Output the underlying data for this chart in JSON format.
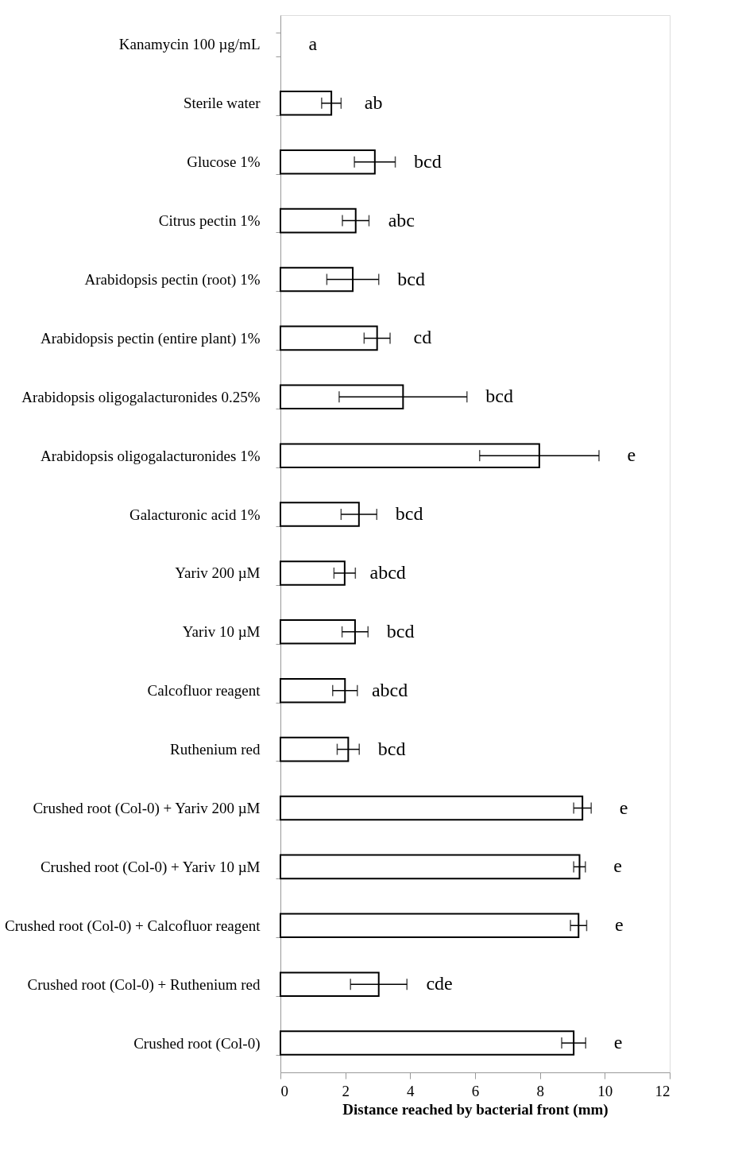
{
  "chart_data": {
    "type": "bar",
    "orientation": "horizontal",
    "xlabel": "Distance reached by bacterial front (mm)",
    "categories": [
      "Kanamycin 100 µg/mL",
      "Sterile water",
      "Glucose 1%",
      "Citrus pectin 1%",
      "Arabidopsis pectin (root) 1%",
      "Arabidopsis pectin (entire plant) 1%",
      "Arabidopsis oligogalacturonides 0.25%",
      "Arabidopsis oligogalacturonides 1%",
      "Galacturonic acid 1%",
      "Yariv 200 µM",
      "Yariv 10 µM",
      "Calcofluor reagent",
      "Ruthenium red",
      "Crushed root (Col-0) + Yariv 200 µM",
      "Crushed root (Col-0) + Yariv 10 µM",
      "Crushed root (Col-0) + Calcofluor reagent",
      "Crushed root (Col-0) + Ruthenium red",
      "Crushed root (Col-0)"
    ],
    "values": [
      0,
      1.57,
      2.91,
      2.32,
      2.23,
      2.98,
      3.78,
      7.98,
      2.42,
      1.98,
      2.3,
      1.99,
      2.09,
      9.31,
      9.22,
      9.19,
      3.03,
      9.04
    ],
    "errors": [
      null,
      0.3,
      0.63,
      0.41,
      0.8,
      0.4,
      1.97,
      1.84,
      0.55,
      0.33,
      0.4,
      0.38,
      0.34,
      0.27,
      0.18,
      0.25,
      0.87,
      0.37
    ],
    "color": "#ffffff",
    "xlim": [
      0,
      12
    ],
    "xticks": [
      0,
      2,
      4,
      6,
      8,
      10,
      12
    ],
    "grid": false,
    "annotations": [
      "a",
      "ab",
      "bcd",
      "abc",
      "bcd",
      "cd",
      "bcd",
      "e",
      "bcd",
      "abcd",
      "bcd",
      "abcd",
      "bcd",
      "e",
      "e",
      "e",
      "cde",
      "e"
    ]
  }
}
